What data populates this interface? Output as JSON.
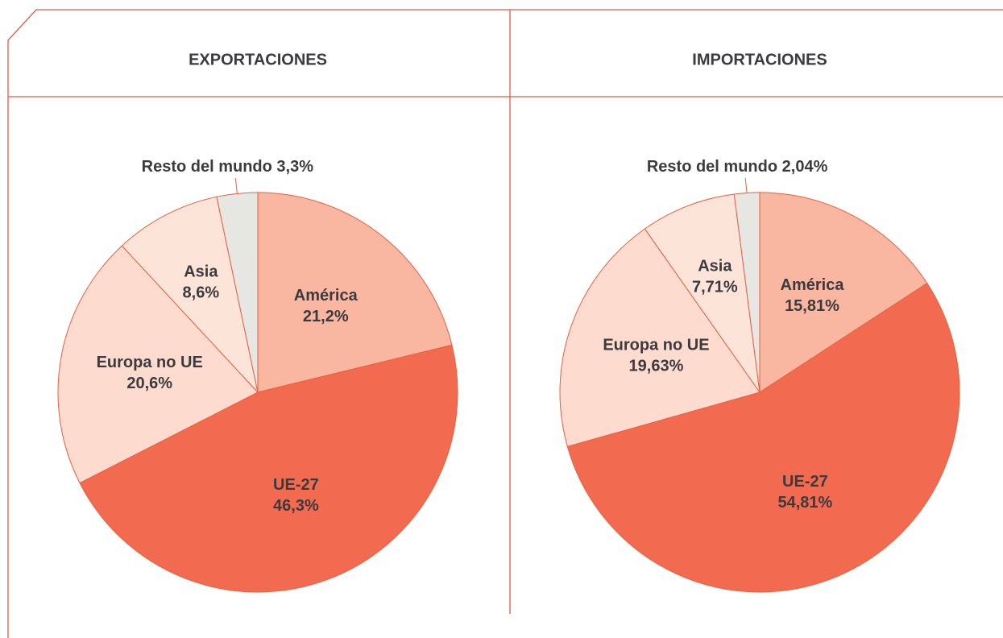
{
  "chart_data": [
    {
      "type": "pie",
      "title": "EXPORTACIONES",
      "categories": [
        "América",
        "UE-27",
        "Europa no UE",
        "Asia",
        "Resto del mundo"
      ],
      "values": [
        21.2,
        46.3,
        20.6,
        8.6,
        3.3
      ],
      "value_labels": [
        "21,2%",
        "46,3%",
        "20,6%",
        "8,6%",
        "3,3%"
      ],
      "colors": [
        "#f9b6a0",
        "#f26b50",
        "#fddbcf",
        "#fde4d9",
        "#e6e6e3"
      ]
    },
    {
      "type": "pie",
      "title": "IMPORTACIONES",
      "categories": [
        "América",
        "UE-27",
        "Europa no UE",
        "Asia",
        "Resto del mundo"
      ],
      "values": [
        15.81,
        54.81,
        19.63,
        7.71,
        2.04
      ],
      "value_labels": [
        "15,81%",
        "54,81%",
        "19,63%",
        "7,71%",
        "2,04%"
      ],
      "colors": [
        "#f9b6a0",
        "#f26b50",
        "#fddbcf",
        "#fde4d9",
        "#e6e6e3"
      ]
    }
  ]
}
